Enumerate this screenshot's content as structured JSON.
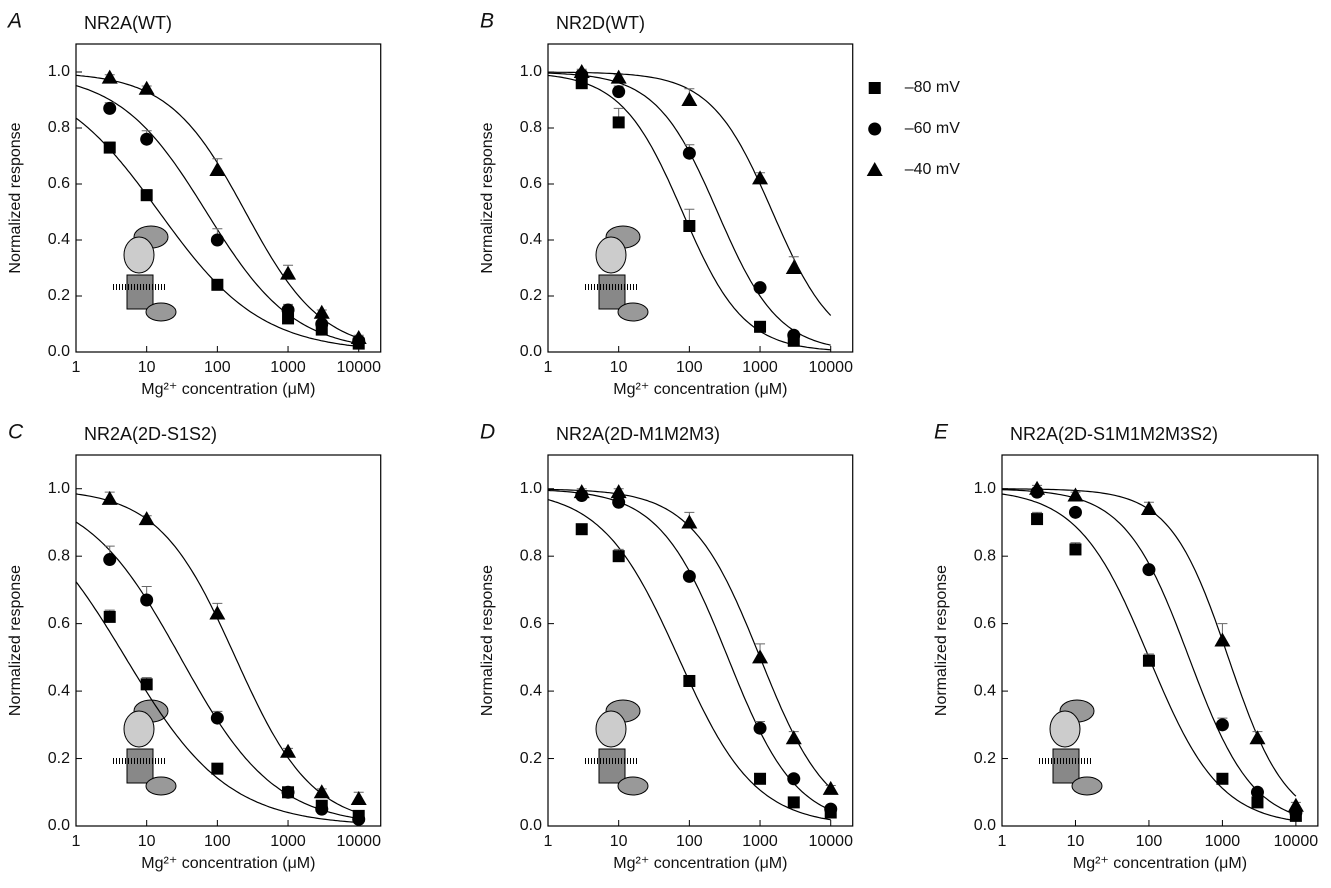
{
  "chart_data": [
    {
      "type": "scatter",
      "panel": "A",
      "title": "NR2A(WT)",
      "xlabel": "Mg²⁺ concentration (μM)",
      "ylabel": "Normalized response",
      "xscale": "log",
      "xlim": [
        1,
        10000
      ],
      "xticks": [
        1,
        10,
        100,
        1000,
        10000
      ],
      "ylim": [
        0,
        1.1
      ],
      "yticks": [
        {
          "value": 0,
          "label": "0.0"
        },
        {
          "value": 0.2,
          "label": "0.2"
        },
        {
          "value": 0.4,
          "label": "0.4"
        },
        {
          "value": 0.6,
          "label": "0.6"
        },
        {
          "value": 0.8,
          "label": "0.8"
        },
        {
          "value": 1,
          "label": "1.0"
        }
      ],
      "series": [
        {
          "marker": "square",
          "color": "#000000",
          "x": [
            3,
            10,
            100,
            1000,
            3000,
            10000
          ],
          "values": [
            0.73,
            0.56,
            0.24,
            0.12,
            0.08,
            0.03
          ],
          "errors": [
            0.02,
            0.02,
            0.01,
            0.01,
            0.01,
            0.01
          ],
          "fit": {
            "ic50": 15,
            "hill": 0.6
          }
        },
        {
          "marker": "circle",
          "color": "#000000",
          "x": [
            3,
            10,
            100,
            1000,
            3000,
            10000
          ],
          "values": [
            0.87,
            0.76,
            0.4,
            0.15,
            0.1,
            0.04
          ],
          "errors": [
            0.02,
            0.03,
            0.04,
            0.02,
            0.01,
            0.01
          ],
          "fit": {
            "ic50": 70,
            "hill": 0.7
          }
        },
        {
          "marker": "triangle",
          "color": "#000000",
          "x": [
            3,
            10,
            100,
            1000,
            3000,
            10000
          ],
          "values": [
            0.98,
            0.94,
            0.65,
            0.28,
            0.14,
            0.05
          ],
          "errors": [
            0.01,
            0.01,
            0.04,
            0.03,
            0.01,
            0.01
          ],
          "fit": {
            "ic50": 250,
            "hill": 0.8
          }
        }
      ]
    },
    {
      "type": "scatter",
      "panel": "B",
      "title": "NR2D(WT)",
      "xlabel": "Mg²⁺ concentration (μM)",
      "ylabel": "Normalized response",
      "xscale": "log",
      "xlim": [
        1,
        10000
      ],
      "xticks": [
        1,
        10,
        100,
        1000,
        10000
      ],
      "ylim": [
        0,
        1.1
      ],
      "yticks": [
        {
          "value": 0,
          "label": "0.0"
        },
        {
          "value": 0.2,
          "label": "0.2"
        },
        {
          "value": 0.4,
          "label": "0.4"
        },
        {
          "value": 0.6,
          "label": "0.6"
        },
        {
          "value": 0.8,
          "label": "0.8"
        },
        {
          "value": 1,
          "label": "1.0"
        }
      ],
      "legend": "outside-right",
      "series": [
        {
          "name": "–80 mV",
          "marker": "square",
          "color": "#000000",
          "x": [
            3,
            10,
            100,
            1000,
            3000
          ],
          "values": [
            0.96,
            0.82,
            0.45,
            0.09,
            0.04
          ],
          "errors": [
            0.01,
            0.05,
            0.06,
            0.01,
            0.01
          ],
          "fit": {
            "ic50": 80,
            "hill": 1
          }
        },
        {
          "name": "–60 mV",
          "marker": "circle",
          "color": "#000000",
          "x": [
            3,
            10,
            100,
            1000,
            3000
          ],
          "values": [
            0.99,
            0.93,
            0.71,
            0.23,
            0.06
          ],
          "errors": [
            0.01,
            0.02,
            0.03,
            0.01,
            0.01
          ],
          "fit": {
            "ic50": 250,
            "hill": 1
          }
        },
        {
          "name": "–40 mV",
          "marker": "triangle",
          "color": "#000000",
          "x": [
            3,
            10,
            100,
            1000,
            3000
          ],
          "values": [
            1,
            0.98,
            0.9,
            0.62,
            0.3
          ],
          "errors": [
            0.01,
            0.01,
            0.04,
            0.02,
            0.04
          ],
          "fit": {
            "ic50": 1500,
            "hill": 1
          }
        }
      ]
    },
    {
      "type": "scatter",
      "panel": "C",
      "title": "NR2A(2D-S1S2)",
      "xlabel": "Mg²⁺ concentration (μM)",
      "ylabel": "Normalized response",
      "xscale": "log",
      "xlim": [
        1,
        10000
      ],
      "xticks": [
        1,
        10,
        100,
        1000,
        10000
      ],
      "ylim": [
        0,
        1.1
      ],
      "yticks": [
        {
          "value": 0,
          "label": "0.0"
        },
        {
          "value": 0.2,
          "label": "0.2"
        },
        {
          "value": 0.4,
          "label": "0.4"
        },
        {
          "value": 0.6,
          "label": "0.6"
        },
        {
          "value": 0.8,
          "label": "0.8"
        },
        {
          "value": 1,
          "label": "1.0"
        }
      ],
      "series": [
        {
          "marker": "square",
          "color": "#000000",
          "x": [
            3,
            10,
            100,
            1000,
            3000,
            10000
          ],
          "values": [
            0.62,
            0.42,
            0.17,
            0.1,
            0.06,
            0.03
          ],
          "errors": [
            0.02,
            0.02,
            0.01,
            0.01,
            0.01,
            0.01
          ],
          "fit": {
            "ic50": 5,
            "hill": 0.6
          }
        },
        {
          "marker": "circle",
          "color": "#000000",
          "x": [
            3,
            10,
            100,
            1000,
            3000,
            10000
          ],
          "values": [
            0.79,
            0.67,
            0.32,
            0.1,
            0.05,
            0.02
          ],
          "errors": [
            0.04,
            0.04,
            0.02,
            0.01,
            0.01,
            0.01
          ],
          "fit": {
            "ic50": 30,
            "hill": 0.65
          }
        },
        {
          "marker": "triangle",
          "color": "#000000",
          "x": [
            3,
            10,
            100,
            1000,
            3000,
            10000
          ],
          "values": [
            0.97,
            0.91,
            0.63,
            0.22,
            0.1,
            0.08
          ],
          "errors": [
            0.02,
            0.01,
            0.03,
            0.01,
            0.01,
            0.02
          ],
          "fit": {
            "ic50": 180,
            "hill": 0.8
          }
        }
      ]
    },
    {
      "type": "scatter",
      "panel": "D",
      "title": "NR2A(2D-M1M2M3)",
      "xlabel": "Mg²⁺ concentration (μM)",
      "ylabel": "Normalized response",
      "xscale": "log",
      "xlim": [
        1,
        10000
      ],
      "xticks": [
        1,
        10,
        100,
        1000,
        10000
      ],
      "ylim": [
        0,
        1.1
      ],
      "yticks": [
        {
          "value": 0,
          "label": "0.0"
        },
        {
          "value": 0.2,
          "label": "0.2"
        },
        {
          "value": 0.4,
          "label": "0.4"
        },
        {
          "value": 0.6,
          "label": "0.6"
        },
        {
          "value": 0.8,
          "label": "0.8"
        },
        {
          "value": 1,
          "label": "1.0"
        }
      ],
      "series": [
        {
          "marker": "square",
          "color": "#000000",
          "x": [
            3,
            10,
            100,
            1000,
            3000,
            10000
          ],
          "values": [
            0.88,
            0.8,
            0.43,
            0.14,
            0.07,
            0.04
          ],
          "errors": [
            0.01,
            0.02,
            0.01,
            0.01,
            0.01,
            0.01
          ],
          "fit": {
            "ic50": 70,
            "hill": 0.8
          }
        },
        {
          "marker": "circle",
          "color": "#000000",
          "x": [
            3,
            10,
            100,
            1000,
            3000,
            10000
          ],
          "values": [
            0.98,
            0.96,
            0.74,
            0.29,
            0.14,
            0.05
          ],
          "errors": [
            0.01,
            0.01,
            0.01,
            0.02,
            0.01,
            0.01
          ],
          "fit": {
            "ic50": 350,
            "hill": 0.9
          }
        },
        {
          "marker": "triangle",
          "color": "#000000",
          "x": [
            3,
            10,
            100,
            1000,
            3000,
            10000
          ],
          "values": [
            0.99,
            0.99,
            0.9,
            0.5,
            0.26,
            0.11
          ],
          "errors": [
            0.01,
            0.01,
            0.03,
            0.04,
            0.02,
            0.01
          ],
          "fit": {
            "ic50": 1000,
            "hill": 0.9
          }
        }
      ]
    },
    {
      "type": "scatter",
      "panel": "E",
      "title": "NR2A(2D-S1M1M2M3S2)",
      "xlabel": "Mg²⁺ concentration (μM)",
      "ylabel": "Normalized response",
      "xscale": "log",
      "xlim": [
        1,
        10000
      ],
      "xticks": [
        1,
        10,
        100,
        1000,
        10000
      ],
      "ylim": [
        0,
        1.1
      ],
      "yticks": [
        {
          "value": 0,
          "label": "0.0"
        },
        {
          "value": 0.2,
          "label": "0.2"
        },
        {
          "value": 0.4,
          "label": "0.4"
        },
        {
          "value": 0.6,
          "label": "0.6"
        },
        {
          "value": 0.8,
          "label": "0.8"
        },
        {
          "value": 1,
          "label": "1.0"
        }
      ],
      "series": [
        {
          "marker": "square",
          "color": "#000000",
          "x": [
            3,
            10,
            100,
            1000,
            3000,
            10000
          ],
          "values": [
            0.91,
            0.82,
            0.49,
            0.14,
            0.07,
            0.03
          ],
          "errors": [
            0.02,
            0.02,
            0.02,
            0.01,
            0.01,
            0.01
          ],
          "fit": {
            "ic50": 100,
            "hill": 0.9
          }
        },
        {
          "marker": "circle",
          "color": "#000000",
          "x": [
            3,
            10,
            100,
            1000,
            3000,
            10000
          ],
          "values": [
            0.99,
            0.93,
            0.76,
            0.3,
            0.1,
            0.04
          ],
          "errors": [
            0.01,
            0.01,
            0.01,
            0.02,
            0.01,
            0.01
          ],
          "fit": {
            "ic50": 350,
            "hill": 1
          }
        },
        {
          "marker": "triangle",
          "color": "#000000",
          "x": [
            3,
            10,
            100,
            1000,
            3000,
            10000
          ],
          "values": [
            1,
            0.98,
            0.94,
            0.55,
            0.26,
            0.06
          ],
          "errors": [
            0.01,
            0.01,
            0.02,
            0.05,
            0.02,
            0.01
          ],
          "fit": {
            "ic50": 1200,
            "hill": 1.1
          }
        }
      ]
    }
  ]
}
